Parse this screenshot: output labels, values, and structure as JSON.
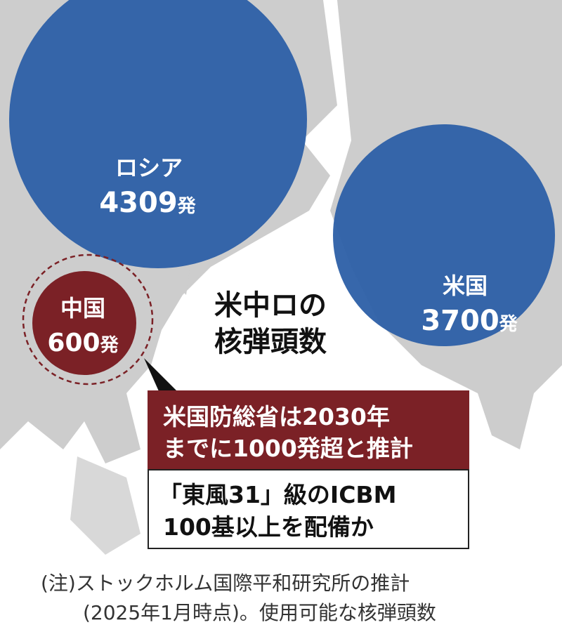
{
  "title": [
    "米中ロの",
    "核弾頭数"
  ],
  "countries": [
    {
      "name": "ロシア",
      "count": 4309,
      "unit": "発"
    },
    {
      "name": "米国",
      "count": 3700,
      "unit": "発"
    },
    {
      "name": "中国",
      "count": 600,
      "unit": "発"
    }
  ],
  "callout": {
    "headline": [
      "米国防総省は2030年",
      "までに1000発超と推計"
    ],
    "body": [
      "「東風31」級のICBM",
      "100基以上を配備か"
    ]
  },
  "note": [
    "(注)ストックホルム国際平和研究所の推計",
    "(2025年1月時点)。使用可能な核弾頭数"
  ]
}
